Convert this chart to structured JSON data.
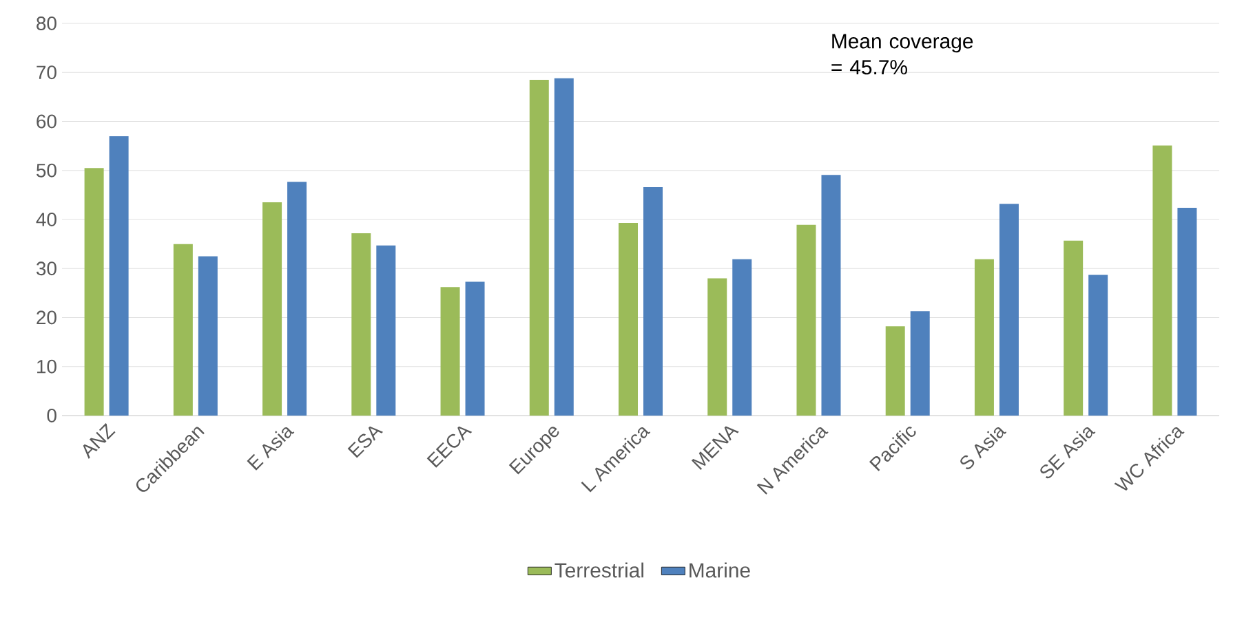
{
  "chart_data": {
    "type": "bar",
    "categories": [
      "ANZ",
      "Caribbean",
      "E Asia",
      "ESA",
      "EECA",
      "Europe",
      "L America",
      "MENA",
      "N America",
      "Pacific",
      "S Asia",
      "SE Asia",
      "WC Africa"
    ],
    "series": [
      {
        "name": "Terrestrial",
        "color": "#9bbb59",
        "values": [
          50.5,
          35.0,
          43.5,
          37.2,
          26.2,
          68.5,
          39.3,
          28.0,
          38.9,
          18.2,
          31.9,
          35.7,
          55.1
        ]
      },
      {
        "name": "Marine",
        "color": "#4f81bd",
        "values": [
          57.0,
          32.5,
          47.7,
          34.7,
          27.3,
          68.8,
          46.6,
          31.9,
          49.1,
          21.3,
          43.2,
          28.7,
          42.4
        ]
      }
    ],
    "ylim": [
      0,
      80
    ],
    "yticks": [
      0,
      10,
      20,
      30,
      40,
      50,
      60,
      70,
      80
    ],
    "grid": "y",
    "legend": "bottom",
    "annotations": [
      "Mean coverage = 45.7%"
    ]
  }
}
